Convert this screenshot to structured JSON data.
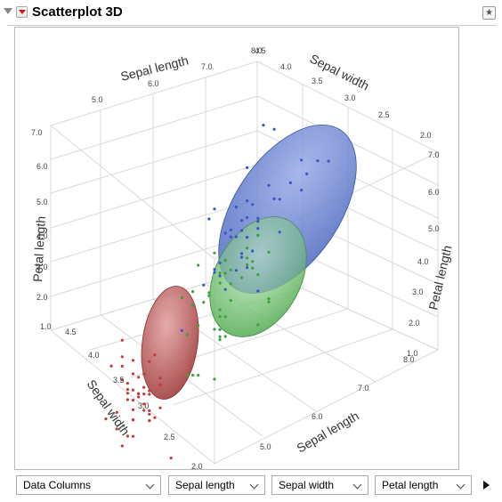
{
  "header": {
    "title": "Scatterplot 3D"
  },
  "colors": {
    "red": "#c23b3b",
    "green": "#3ba23b",
    "blue": "#3b55c9"
  },
  "chart_data": {
    "type": "scatter",
    "title": "",
    "axes": {
      "sepal_length_top": {
        "label": "Sepal length",
        "ticks": [
          "5.0",
          "6.0",
          "7.0",
          "8.0"
        ]
      },
      "sepal_length_bottom": {
        "label": "Sepal length",
        "ticks": [
          "5.0",
          "6.0",
          "7.0",
          "8.0"
        ]
      },
      "sepal_width_top": {
        "label": "Sepal width",
        "ticks": [
          "4.0",
          "3.5",
          "3.0",
          "2.5",
          "2.0"
        ],
        "extra_tick": "4.5"
      },
      "sepal_width_left": {
        "label": "Sepal width",
        "ticks": [
          "4.5",
          "4.0",
          "3.5",
          "3.0",
          "2.5",
          "2.0"
        ]
      },
      "petal_length_left": {
        "label": "Petal length",
        "ticks": [
          "7.0",
          "6.0",
          "5.0",
          "4.0",
          "3.0",
          "2.0",
          "1.0"
        ]
      },
      "petal_length_right": {
        "label": "Petal length",
        "ticks": [
          "7.0",
          "6.0",
          "5.0",
          "4.0",
          "3.0",
          "2.0",
          "1.0"
        ]
      }
    },
    "series": [
      {
        "color": "#c23b3b",
        "points": [
          [
            5.1,
            3.5,
            1.4
          ],
          [
            4.9,
            3.0,
            1.4
          ],
          [
            4.7,
            3.2,
            1.3
          ],
          [
            4.6,
            3.1,
            1.5
          ],
          [
            5.0,
            3.6,
            1.4
          ],
          [
            5.4,
            3.9,
            1.7
          ],
          [
            4.6,
            3.4,
            1.4
          ],
          [
            5.0,
            3.4,
            1.5
          ],
          [
            4.4,
            2.9,
            1.4
          ],
          [
            4.9,
            3.1,
            1.5
          ],
          [
            5.4,
            3.7,
            1.5
          ],
          [
            4.8,
            3.4,
            1.6
          ],
          [
            4.8,
            3.0,
            1.4
          ],
          [
            4.3,
            3.0,
            1.1
          ],
          [
            5.8,
            4.0,
            1.2
          ],
          [
            5.7,
            4.4,
            1.5
          ],
          [
            5.4,
            3.9,
            1.3
          ],
          [
            5.1,
            3.5,
            1.4
          ],
          [
            5.7,
            3.8,
            1.7
          ],
          [
            5.1,
            3.8,
            1.5
          ],
          [
            5.4,
            3.4,
            1.7
          ],
          [
            5.1,
            3.7,
            1.5
          ],
          [
            4.6,
            3.6,
            1.0
          ],
          [
            5.1,
            3.3,
            1.7
          ],
          [
            4.8,
            3.4,
            1.9
          ],
          [
            5.0,
            3.0,
            1.6
          ],
          [
            5.0,
            3.4,
            1.6
          ],
          [
            5.2,
            3.5,
            1.5
          ],
          [
            5.2,
            3.4,
            1.4
          ],
          [
            4.7,
            3.2,
            1.6
          ],
          [
            4.8,
            3.1,
            1.6
          ],
          [
            5.4,
            3.4,
            1.5
          ],
          [
            5.2,
            4.1,
            1.5
          ],
          [
            5.5,
            4.2,
            1.4
          ],
          [
            5.0,
            3.2,
            1.2
          ],
          [
            5.5,
            3.5,
            1.3
          ],
          [
            4.4,
            3.0,
            1.3
          ],
          [
            5.1,
            3.4,
            1.5
          ],
          [
            5.0,
            3.5,
            1.3
          ],
          [
            4.5,
            2.3,
            1.3
          ],
          [
            4.4,
            3.2,
            1.3
          ],
          [
            5.0,
            3.5,
            1.6
          ],
          [
            5.1,
            3.8,
            1.9
          ],
          [
            4.8,
            3.0,
            1.4
          ],
          [
            5.3,
            3.7,
            1.5
          ],
          [
            5.0,
            3.3,
            1.4
          ]
        ]
      },
      {
        "color": "#3ba23b",
        "points": [
          [
            7.0,
            3.2,
            4.7
          ],
          [
            6.4,
            3.2,
            4.5
          ],
          [
            6.9,
            3.1,
            4.9
          ],
          [
            5.5,
            2.3,
            4.0
          ],
          [
            6.5,
            2.8,
            4.6
          ],
          [
            5.7,
            2.8,
            4.5
          ],
          [
            6.3,
            3.3,
            4.7
          ],
          [
            4.9,
            2.4,
            3.3
          ],
          [
            6.6,
            2.9,
            4.6
          ],
          [
            5.2,
            2.7,
            3.9
          ],
          [
            5.0,
            2.0,
            3.5
          ],
          [
            5.9,
            3.0,
            4.2
          ],
          [
            6.0,
            2.2,
            4.0
          ],
          [
            6.1,
            2.9,
            4.7
          ],
          [
            5.6,
            2.9,
            3.6
          ],
          [
            6.7,
            3.1,
            4.4
          ],
          [
            5.6,
            3.0,
            4.5
          ],
          [
            5.8,
            2.7,
            4.1
          ],
          [
            6.2,
            2.2,
            4.5
          ],
          [
            5.6,
            2.5,
            3.9
          ],
          [
            5.9,
            3.2,
            4.8
          ],
          [
            6.1,
            2.8,
            4.0
          ],
          [
            6.3,
            2.5,
            4.9
          ],
          [
            6.4,
            2.9,
            4.3
          ],
          [
            6.6,
            3.0,
            4.4
          ],
          [
            6.8,
            2.8,
            4.8
          ],
          [
            6.0,
            2.9,
            4.5
          ],
          [
            5.7,
            2.6,
            3.5
          ],
          [
            5.5,
            2.4,
            3.8
          ],
          [
            5.8,
            2.7,
            3.9
          ],
          [
            6.0,
            2.7,
            5.1
          ],
          [
            5.4,
            3.0,
            4.5
          ],
          [
            6.7,
            3.1,
            4.7
          ],
          [
            6.3,
            2.3,
            4.4
          ],
          [
            5.6,
            3.0,
            4.1
          ],
          [
            5.5,
            2.5,
            4.0
          ],
          [
            6.1,
            3.0,
            4.6
          ],
          [
            5.8,
            2.6,
            4.0
          ],
          [
            5.0,
            2.3,
            3.3
          ],
          [
            5.7,
            2.9,
            4.2
          ],
          [
            6.2,
            2.9,
            4.3
          ],
          [
            5.1,
            2.5,
            3.0
          ]
        ]
      },
      {
        "color": "#3b55c9",
        "points": [
          [
            6.3,
            3.3,
            6.0
          ],
          [
            5.8,
            2.7,
            5.1
          ],
          [
            7.1,
            3.0,
            5.9
          ],
          [
            6.3,
            2.9,
            5.6
          ],
          [
            6.5,
            3.0,
            5.8
          ],
          [
            7.6,
            3.0,
            6.6
          ],
          [
            4.9,
            2.5,
            4.5
          ],
          [
            7.3,
            2.9,
            6.3
          ],
          [
            6.7,
            2.5,
            5.8
          ],
          [
            7.2,
            3.6,
            6.1
          ],
          [
            6.5,
            3.2,
            5.1
          ],
          [
            6.4,
            2.7,
            5.3
          ],
          [
            6.8,
            3.0,
            5.5
          ],
          [
            5.7,
            2.5,
            5.0
          ],
          [
            5.8,
            2.8,
            5.1
          ],
          [
            6.4,
            3.2,
            5.3
          ],
          [
            6.5,
            3.0,
            5.5
          ],
          [
            7.7,
            3.8,
            6.7
          ],
          [
            7.7,
            2.6,
            6.9
          ],
          [
            6.0,
            2.2,
            5.0
          ],
          [
            6.9,
            3.2,
            5.7
          ],
          [
            5.6,
            2.8,
            4.9
          ],
          [
            7.7,
            2.8,
            6.7
          ],
          [
            6.3,
            2.7,
            4.9
          ],
          [
            6.7,
            3.3,
            5.7
          ],
          [
            7.2,
            3.2,
            6.0
          ],
          [
            6.2,
            2.8,
            4.8
          ],
          [
            6.1,
            3.0,
            4.9
          ],
          [
            6.4,
            2.8,
            5.6
          ],
          [
            7.2,
            3.0,
            5.8
          ],
          [
            7.4,
            2.8,
            6.1
          ],
          [
            7.9,
            3.8,
            6.4
          ],
          [
            6.4,
            2.8,
            5.6
          ],
          [
            6.3,
            2.8,
            5.1
          ],
          [
            6.1,
            2.6,
            5.6
          ],
          [
            7.7,
            3.0,
            6.1
          ],
          [
            6.3,
            3.4,
            5.6
          ],
          [
            6.4,
            3.1,
            5.5
          ],
          [
            6.0,
            3.0,
            4.8
          ],
          [
            6.9,
            3.1,
            5.4
          ],
          [
            6.7,
            3.1,
            5.6
          ],
          [
            6.9,
            3.1,
            5.1
          ],
          [
            6.8,
            3.2,
            5.9
          ],
          [
            6.7,
            3.3,
            5.7
          ]
        ]
      }
    ]
  },
  "controls": {
    "columns": "Data Columns",
    "x": "Sepal length",
    "y": "Sepal width",
    "z": "Petal length"
  }
}
